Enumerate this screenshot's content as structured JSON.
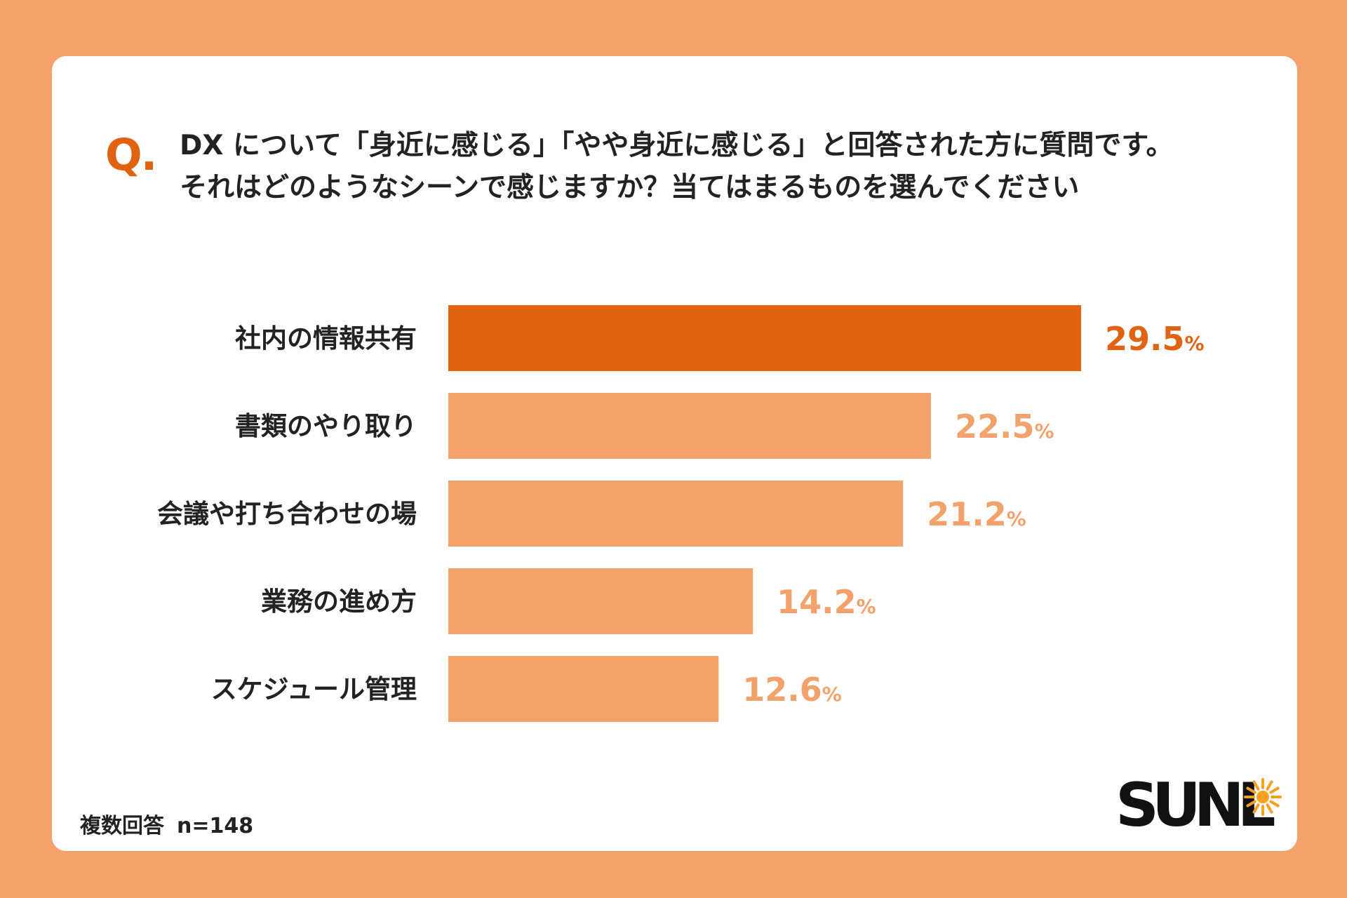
{
  "question": {
    "mark": "Q.",
    "line1": "DX について「身近に感じる」「やや身近に感じる」と回答された方に質問です。",
    "line2": "それはどのようなシーンで感じますか？当てはまるものを選んでください"
  },
  "chart_data": {
    "type": "bar",
    "orientation": "horizontal",
    "categories": [
      "社内の情報共有",
      "書類のやり取り",
      "会議や打ち合わせの場",
      "業務の進め方",
      "スケジュール管理"
    ],
    "values": [
      29.5,
      22.5,
      21.2,
      14.2,
      12.6
    ],
    "value_labels": [
      "29.5",
      "22.5",
      "21.2",
      "14.2",
      "12.6"
    ],
    "unit": "%",
    "highlight_index": 0,
    "colors": {
      "highlight": "#df6310",
      "default": "#f4a26b"
    },
    "xlim": [
      0,
      30
    ]
  },
  "footnote": {
    "label": "複数回答",
    "n": "n=148"
  },
  "logo": {
    "text": "SUNL",
    "accent_color": "#f4a020"
  },
  "colors": {
    "background": "#f4a26b",
    "card": "#ffffff",
    "text": "#222222",
    "accent": "#df6310"
  }
}
